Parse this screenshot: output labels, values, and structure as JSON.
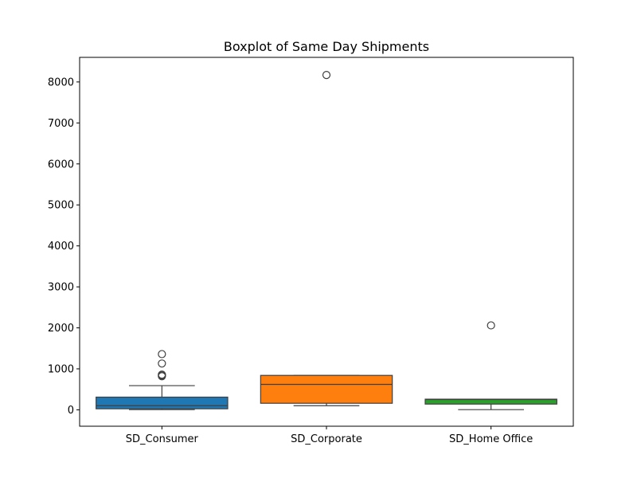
{
  "chart_data": {
    "type": "boxplot",
    "title": "Boxplot of Same Day Shipments",
    "xlabel": "",
    "ylabel": "",
    "ylim": [
      -400,
      8600
    ],
    "yticks": [
      0,
      1000,
      2000,
      3000,
      4000,
      5000,
      6000,
      7000,
      8000
    ],
    "grid": false,
    "categories": [
      "SD_Consumer",
      "SD_Corporate",
      "SD_Home Office"
    ],
    "boxes": [
      {
        "category": "SD_Consumer",
        "color": "#1f77b4",
        "whisker_low": 5,
        "q1": 25,
        "median": 100,
        "q3": 310,
        "whisker_high": 590,
        "outliers": [
          820,
          840,
          860,
          1130,
          1360
        ]
      },
      {
        "category": "SD_Corporate",
        "color": "#ff7f0e",
        "whisker_low": 100,
        "q1": 160,
        "median": 620,
        "q3": 840,
        "whisker_high": 840,
        "outliers": [
          8170
        ]
      },
      {
        "category": "SD_Home Office",
        "color": "#2ca02c",
        "whisker_low": 5,
        "q1": 140,
        "median": 250,
        "q3": 260,
        "whisker_high": 260,
        "outliers": [
          2060
        ]
      }
    ]
  }
}
